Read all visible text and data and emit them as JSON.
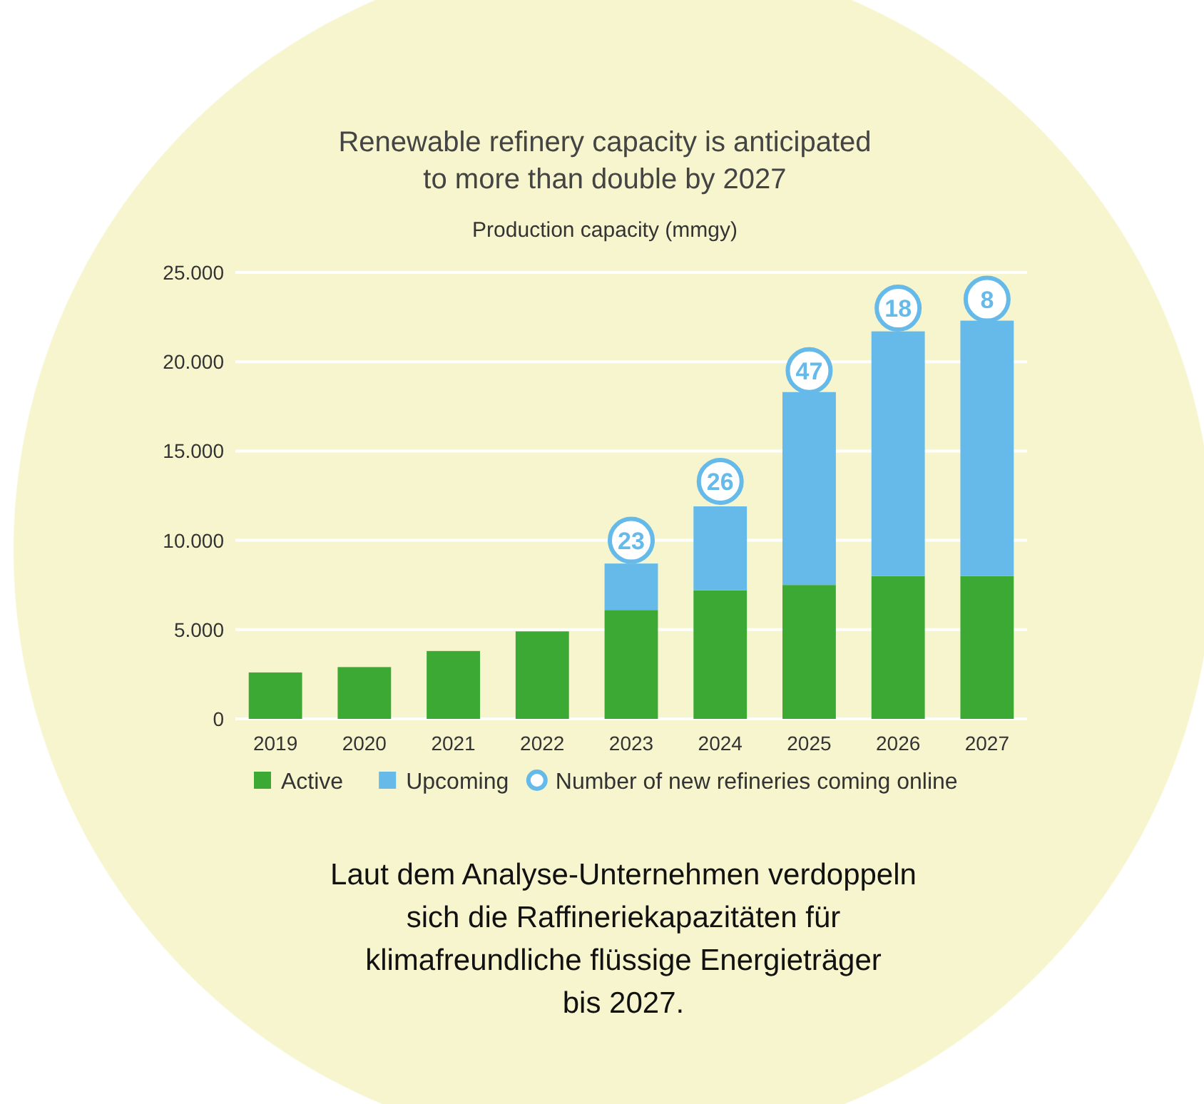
{
  "chart_data": {
    "type": "bar",
    "title": "Renewable refinery capacity is anticipated\nto more than double by 2027",
    "subtitle": "Production capacity (mmgy)",
    "categories": [
      "2019",
      "2020",
      "2021",
      "2022",
      "2023",
      "2024",
      "2025",
      "2026",
      "2027"
    ],
    "stacked": true,
    "series": [
      {
        "name": "Active",
        "color": "#3ca935",
        "values": [
          2600,
          2900,
          3800,
          4900,
          6100,
          7200,
          7500,
          8000,
          8000
        ]
      },
      {
        "name": "Upcoming",
        "color": "#65bae9",
        "values": [
          null,
          null,
          null,
          null,
          2600,
          4700,
          10800,
          13700,
          14300
        ]
      }
    ],
    "ylim": [
      0,
      25000
    ],
    "yticks": [
      0,
      {
        "value": 5000,
        "label": "5.000"
      },
      {
        "value": 10000,
        "label": "10.000"
      },
      {
        "value": 15000,
        "label": "15.000"
      },
      {
        "value": 20000,
        "label": "20.000"
      },
      {
        "value": 25000,
        "label": "25.000"
      }
    ],
    "grid": "y",
    "legend": "bottom",
    "annotations": [
      "Number of new refineries coming online",
      {
        "text": "23",
        "x": "2023",
        "y": 10000
      },
      {
        "text": "26",
        "x": "2024",
        "y": 13300
      },
      {
        "text": "47",
        "x": "2025",
        "y": 19500
      },
      {
        "text": "18",
        "x": "2026",
        "y": 23000
      },
      {
        "text": "8",
        "x": "2027",
        "y": 23500
      },
      "Laut dem Analyse-Unternehmen verdoppeln sich die Raffineriekapazitäten für klimafreundliche flüssige Energieträger bis 2027."
    ]
  }
}
